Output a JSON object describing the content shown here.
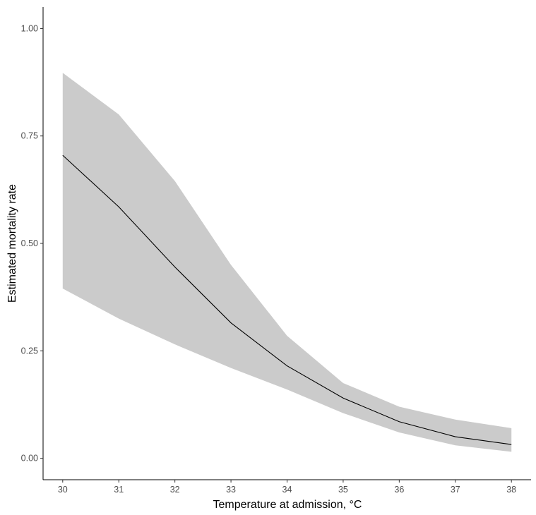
{
  "chart_data": {
    "type": "line",
    "title": "",
    "xlabel": "Temperature at admission, °C",
    "ylabel": "Estimated mortality rate",
    "xlim": [
      29.65,
      38.35
    ],
    "ylim": [
      -0.05,
      1.05
    ],
    "x_ticks": [
      30,
      31,
      32,
      33,
      34,
      35,
      36,
      37,
      38
    ],
    "y_ticks": [
      0.0,
      0.25,
      0.5,
      0.75,
      1.0
    ],
    "y_tick_labels": [
      "0.00",
      "0.25",
      "0.50",
      "0.75",
      "1.00"
    ],
    "grid": false,
    "legend": "none",
    "colors": {
      "line": "#000000",
      "band": "#cbcbcb",
      "axis": "#000000"
    },
    "x": [
      30,
      31,
      32,
      33,
      34,
      35,
      36,
      37,
      38
    ],
    "series": [
      {
        "values": [
          0.705,
          0.585,
          0.445,
          0.315,
          0.215,
          0.14,
          0.085,
          0.05,
          0.032
        ],
        "ci_lower": [
          0.395,
          0.325,
          0.265,
          0.21,
          0.16,
          0.105,
          0.06,
          0.03,
          0.015
        ],
        "ci_upper": [
          0.897,
          0.8,
          0.645,
          0.45,
          0.285,
          0.175,
          0.12,
          0.09,
          0.07
        ]
      }
    ]
  }
}
